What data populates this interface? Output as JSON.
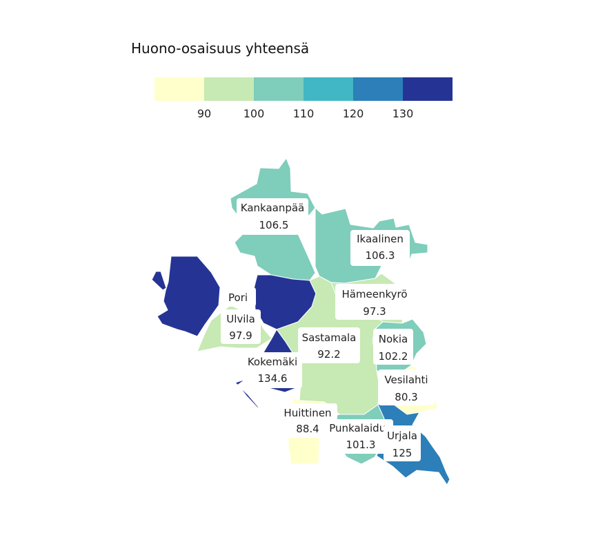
{
  "chart_data": {
    "type": "choropleth",
    "legend": {
      "title": "Huono-osaisuus yhteensä",
      "breaks": [
        90,
        100,
        110,
        120,
        130
      ],
      "tick_labels": [
        "90",
        "100",
        "110",
        "120",
        "130"
      ],
      "colors": [
        "#ffffcc",
        "#c7e9b4",
        "#7fcdbb",
        "#41b6c4",
        "#2c7fb8",
        "#253494"
      ]
    },
    "regions": [
      {
        "name": "Kankaanpää",
        "value": 106.5,
        "value_label": "106.5"
      },
      {
        "name": "Ikaalinen",
        "value": 106.3,
        "value_label": "106.3"
      },
      {
        "name": "Pori",
        "value": null,
        "value_label": ""
      },
      {
        "name": "Ulvila",
        "value": 97.9,
        "value_label": "97.9"
      },
      {
        "name": "Hämeenkyrö",
        "value": 97.3,
        "value_label": "97.3"
      },
      {
        "name": "Sastamala",
        "value": 92.2,
        "value_label": "92.2"
      },
      {
        "name": "Nokia",
        "value": 102.2,
        "value_label": "102.2"
      },
      {
        "name": "Kokemäki",
        "value": 134.6,
        "value_label": "134.6"
      },
      {
        "name": "Vesilahti",
        "value": 80.3,
        "value_label": "80.3"
      },
      {
        "name": "Huittinen",
        "value": 88.4,
        "value_label": "88.4"
      },
      {
        "name": "Punkalaidun",
        "value": 101.3,
        "value_label": "101.3"
      },
      {
        "name": "Urjala",
        "value": 125,
        "value_label": "125"
      }
    ]
  }
}
